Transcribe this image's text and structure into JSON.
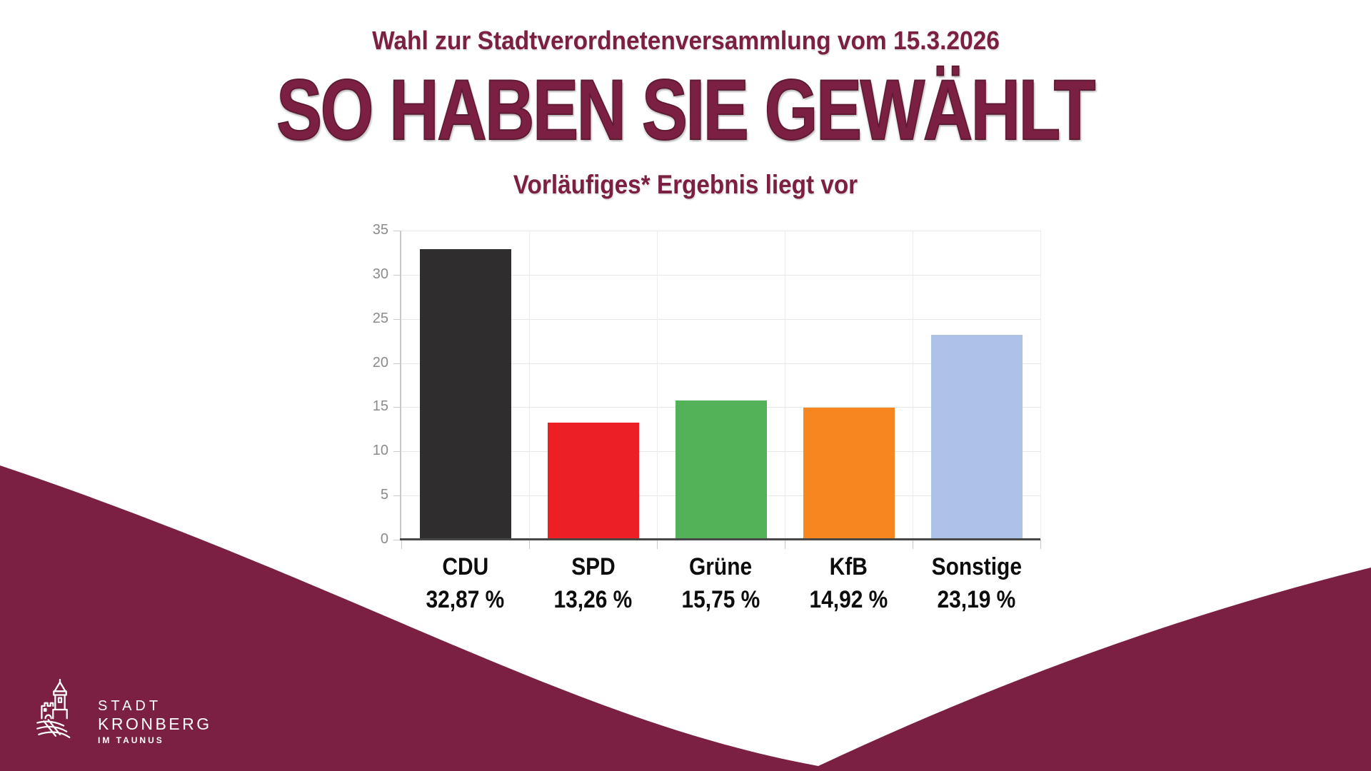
{
  "page": {
    "background": "#FFFFFF",
    "accent": "#7B2042"
  },
  "header": {
    "line1": "Wahl zur Stadtverordnetenversammlung vom 15.3.2026",
    "title": "SO HABEN SIE GEWÄHLT",
    "subtitle": "Vorläufiges* Ergebnis liegt vor"
  },
  "chart_data": {
    "type": "bar",
    "title": "",
    "categories": [
      "CDU",
      "SPD",
      "Grüne",
      "KfB",
      "Sonstige"
    ],
    "values": [
      32.87,
      13.26,
      15.75,
      14.92,
      23.19
    ],
    "value_labels": [
      "32,87 %",
      "13,26 %",
      "15,75 %",
      "14,92 %",
      "23,19 %"
    ],
    "colors": [
      "#2F2D2E",
      "#EC2024",
      "#53B257",
      "#F78621",
      "#AEC2E8"
    ],
    "ylim": [
      0,
      35
    ],
    "yticks": [
      0,
      5,
      10,
      15,
      20,
      25,
      30,
      35
    ],
    "grid": true,
    "legend": "none",
    "axis_color": "#C9C9C9",
    "baseline_color": "#474747",
    "tick_label_color": "#8B8B8B"
  },
  "logo": {
    "icon": "kronberg-castle-icon",
    "line1": "STADT",
    "line2": "KRONBERG",
    "line3": "IM TAUNUS"
  }
}
